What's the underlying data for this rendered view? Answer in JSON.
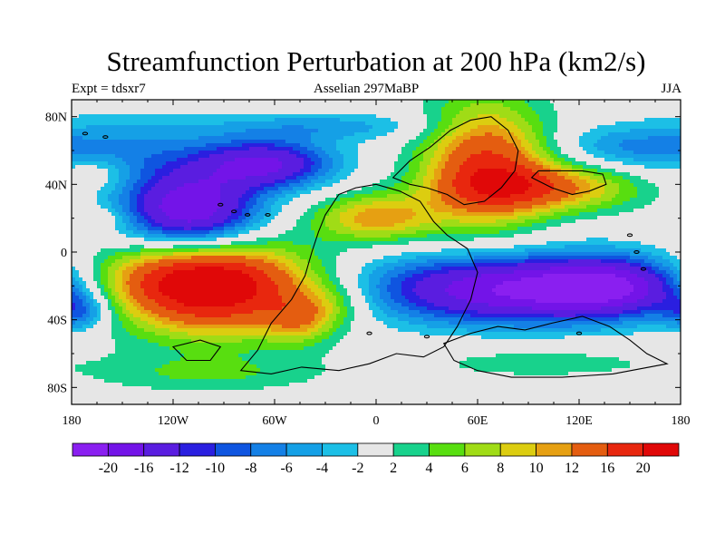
{
  "header": {
    "title": "Streamfunction Perturbation at 200 hPa (km2/s)",
    "left": "Expt = tdsxr7",
    "center": "Asselian 297MaBP",
    "right": "JJA"
  },
  "chart_data": {
    "type": "heatmap",
    "title": "Streamfunction Perturbation at 200 hPa (km2/s)",
    "xlim": [
      -180,
      180
    ],
    "ylim": [
      -90,
      90
    ],
    "x_ticks": [
      {
        "value": -180,
        "label": "180"
      },
      {
        "value": -120,
        "label": "120W"
      },
      {
        "value": -60,
        "label": "60W"
      },
      {
        "value": 0,
        "label": "0"
      },
      {
        "value": 60,
        "label": "60E"
      },
      {
        "value": 120,
        "label": "120E"
      },
      {
        "value": 180,
        "label": "180"
      }
    ],
    "y_ticks": [
      {
        "value": 80,
        "label": "80N"
      },
      {
        "value": 40,
        "label": "40N"
      },
      {
        "value": 0,
        "label": "0"
      },
      {
        "value": -40,
        "label": "40S"
      },
      {
        "value": -80,
        "label": "80S"
      }
    ],
    "levels": [
      -20,
      -16,
      -12,
      -10,
      -8,
      -6,
      -4,
      -2,
      2,
      4,
      6,
      8,
      10,
      12,
      16,
      20
    ],
    "level_labels": [
      "-20",
      "-16",
      "-12",
      "-10",
      "-8",
      "-6",
      "-4",
      "-2",
      "2",
      "4",
      "6",
      "8",
      "10",
      "12",
      "16",
      "20"
    ],
    "colors": [
      "#8a1ff0",
      "#7314e8",
      "#5a1de0",
      "#2a1fe0",
      "#0f55e0",
      "#1480e6",
      "#15a0e6",
      "#1cbfe6",
      "#e6e6e6",
      "#18d28c",
      "#58de10",
      "#a0dc16",
      "#dccd10",
      "#e6a012",
      "#e45d10",
      "#e8270e",
      "#e00808"
    ],
    "features": [
      {
        "lon": -95,
        "lat": -22,
        "value": 22,
        "slon": 42,
        "slat": 19
      },
      {
        "lon": -120,
        "lat": -15,
        "value": 6,
        "slon": 38,
        "slat": 12
      },
      {
        "lon": -45,
        "lat": -40,
        "value": 7,
        "slon": 14,
        "slat": 10
      },
      {
        "lon": -25,
        "lat": -30,
        "value": 4,
        "slon": 16,
        "slat": 10
      },
      {
        "lon": 80,
        "lat": -22,
        "value": -20,
        "slon": 60,
        "slat": 14
      },
      {
        "lon": 140,
        "lat": -20,
        "value": -12,
        "slon": 30,
        "slat": 12
      },
      {
        "lon": -175,
        "lat": -35,
        "value": -8,
        "slon": 12,
        "slat": 8
      },
      {
        "lon": -110,
        "lat": 25,
        "value": -20,
        "slon": 28,
        "slat": 16
      },
      {
        "lon": -65,
        "lat": 52,
        "value": -16,
        "slon": 28,
        "slat": 10
      },
      {
        "lon": -150,
        "lat": 60,
        "value": -6,
        "slon": 40,
        "slat": 14
      },
      {
        "lon": -30,
        "lat": 74,
        "value": -5,
        "slon": 50,
        "slat": 6
      },
      {
        "lon": 145,
        "lat": 62,
        "value": -5,
        "slon": 30,
        "slat": 9
      },
      {
        "lon": 65,
        "lat": 52,
        "value": 16,
        "slon": 26,
        "slat": 26
      },
      {
        "lon": 0,
        "lat": 20,
        "value": 11,
        "slon": 26,
        "slat": 10
      },
      {
        "lon": 100,
        "lat": 38,
        "value": 12,
        "slon": 40,
        "slat": 10
      },
      {
        "lon": -165,
        "lat": 47,
        "value": 4,
        "slon": 14,
        "slat": 7
      },
      {
        "lon": -163,
        "lat": 20,
        "value": 3,
        "slon": 14,
        "slat": 5
      },
      {
        "lon": -100,
        "lat": -72,
        "value": 4,
        "slon": 50,
        "slat": 8
      },
      {
        "lon": 95,
        "lat": -65,
        "value": 3,
        "slon": 55,
        "slat": 8
      }
    ]
  },
  "colorbar": {
    "labels": [
      "-20",
      "-16",
      "-12",
      "-10",
      "-8",
      "-6",
      "-4",
      "-2",
      "2",
      "4",
      "6",
      "8",
      "10",
      "12",
      "16",
      "20"
    ]
  }
}
